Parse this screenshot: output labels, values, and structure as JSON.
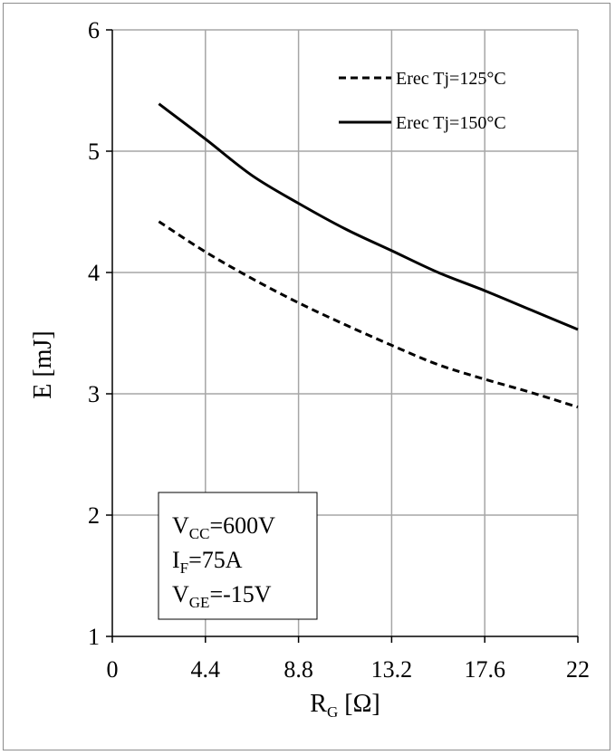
{
  "chart_data": {
    "type": "line",
    "xlabel": {
      "main": "R",
      "sub": "G",
      "unit": " [Ω]"
    },
    "ylabel": "E [mJ]",
    "xlim": [
      0,
      22
    ],
    "ylim": [
      1,
      6
    ],
    "xticks": [
      0,
      4.4,
      8.8,
      13.2,
      17.6,
      22
    ],
    "xtick_labels": [
      "0",
      "4.4",
      "8.8",
      "13.2",
      "17.6",
      "22"
    ],
    "yticks": [
      1,
      2,
      3,
      4,
      5,
      6
    ],
    "ytick_labels": [
      "1",
      "2",
      "3",
      "4",
      "5",
      "6"
    ],
    "grid": true,
    "legend_position": "top-right",
    "series": [
      {
        "name": "Erec Tj=125°C",
        "style": "dashed",
        "color": "#000000",
        "x": [
          2.2,
          4.4,
          6.6,
          8.8,
          11,
          13.2,
          15.4,
          17.6,
          19.8,
          22
        ],
        "y": [
          4.42,
          4.17,
          3.95,
          3.75,
          3.57,
          3.4,
          3.24,
          3.12,
          3.01,
          2.89
        ]
      },
      {
        "name": "Erec Tj=150°C",
        "style": "solid",
        "color": "#000000",
        "x": [
          2.2,
          4.4,
          6.6,
          8.8,
          11,
          13.2,
          15.4,
          17.6,
          19.8,
          22
        ],
        "y": [
          5.39,
          5.1,
          4.8,
          4.57,
          4.36,
          4.18,
          4.0,
          3.85,
          3.69,
          3.53
        ]
      }
    ],
    "conditions": [
      {
        "main": "V",
        "sub": "CC",
        "rest": "=600V"
      },
      {
        "main": "I",
        "sub": "F",
        "rest": "=75A"
      },
      {
        "main": "V",
        "sub": "GE",
        "rest": "=-15V"
      }
    ]
  }
}
